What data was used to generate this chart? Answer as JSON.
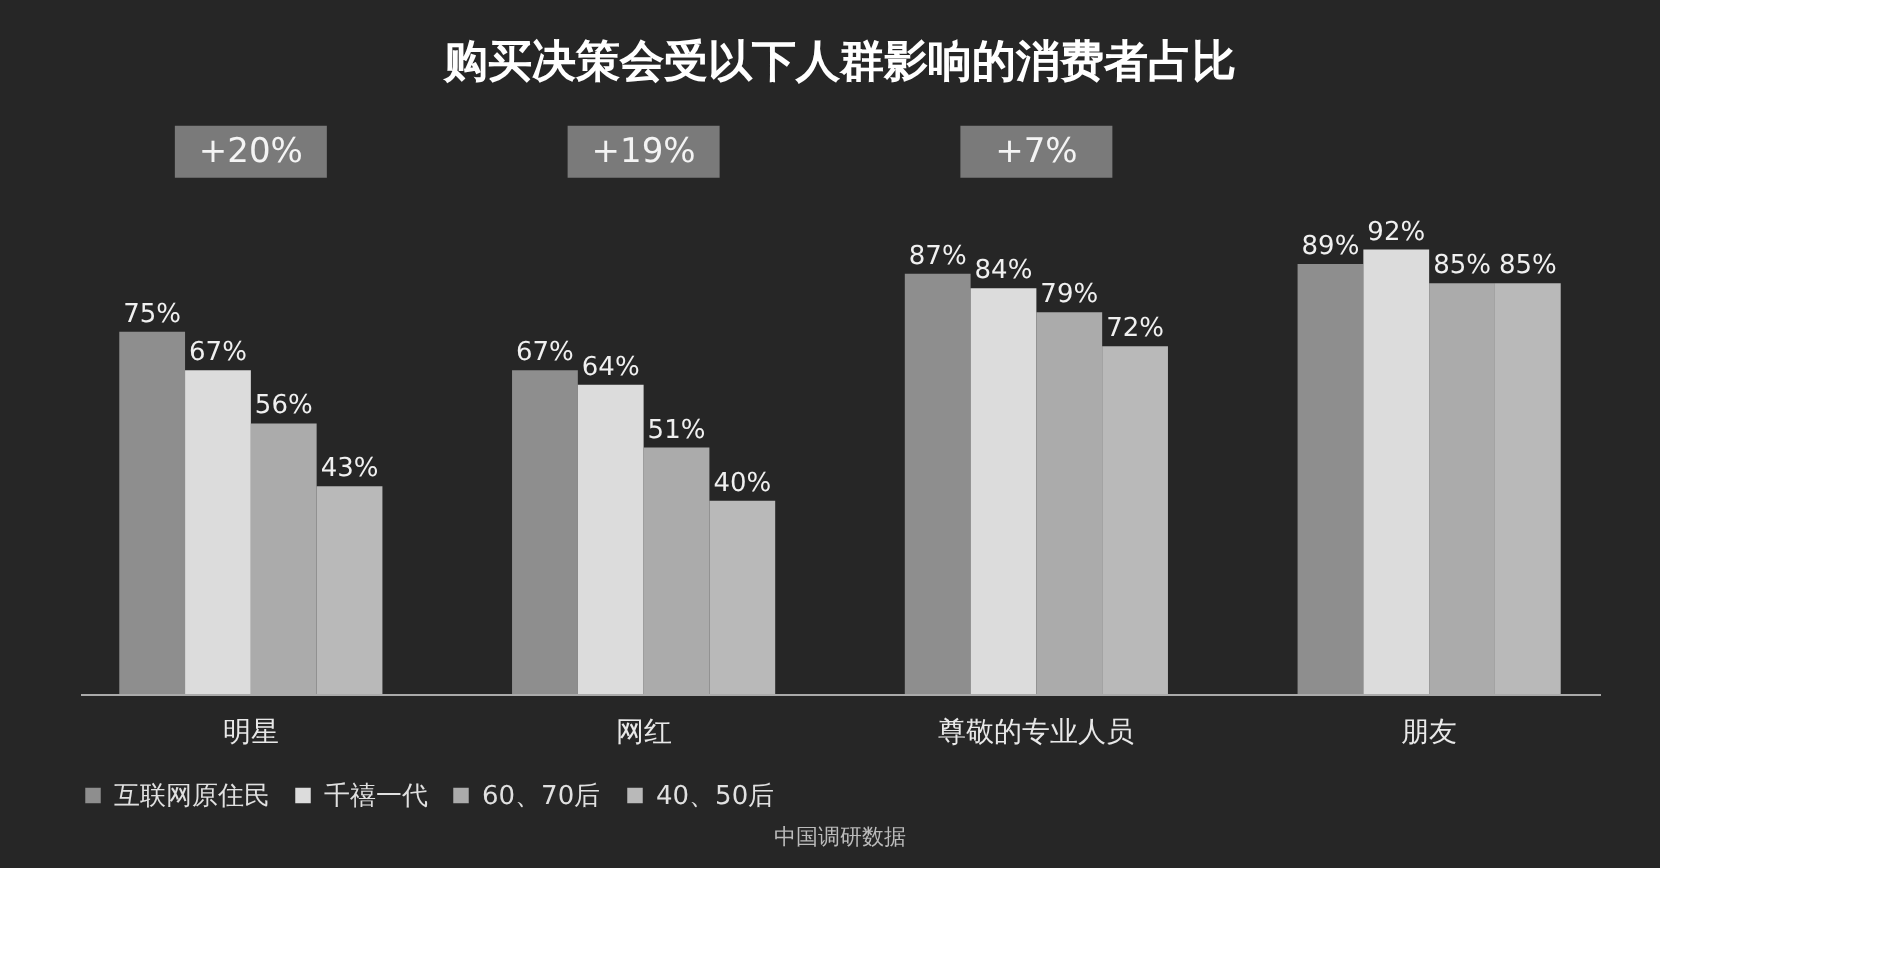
{
  "chart_data": {
    "type": "bar",
    "title": "购买决策会受以下人群影响的消费者占比",
    "categories": [
      "明星",
      "网红",
      "尊敬的专业人员",
      "朋友"
    ],
    "series": [
      {
        "name": "互联网原住民",
        "color": "#8e8e8e",
        "values": [
          75,
          67,
          87,
          89
        ],
        "value_labels": [
          "75%",
          "67%",
          "87%",
          "89%"
        ]
      },
      {
        "name": "千禧一代",
        "color": "#dcdcdc",
        "values": [
          67,
          64,
          84,
          92
        ],
        "value_labels": [
          "67%",
          "64%",
          "84%",
          "92%"
        ]
      },
      {
        "name": "60、70后",
        "color": "#ababab",
        "values": [
          56,
          51,
          79,
          85
        ],
        "value_labels": [
          "56%",
          "51%",
          "79%",
          "85%"
        ]
      },
      {
        "name": "40、50后",
        "color": "#b9b9b9",
        "values": [
          43,
          40,
          72,
          85
        ],
        "value_labels": [
          "43%",
          "40%",
          "72%",
          "85%"
        ]
      }
    ],
    "annotations": [
      "+20%",
      "+19%",
      "+7%",
      "中国调研数据"
    ],
    "legend": "bottom",
    "grid": false
  }
}
